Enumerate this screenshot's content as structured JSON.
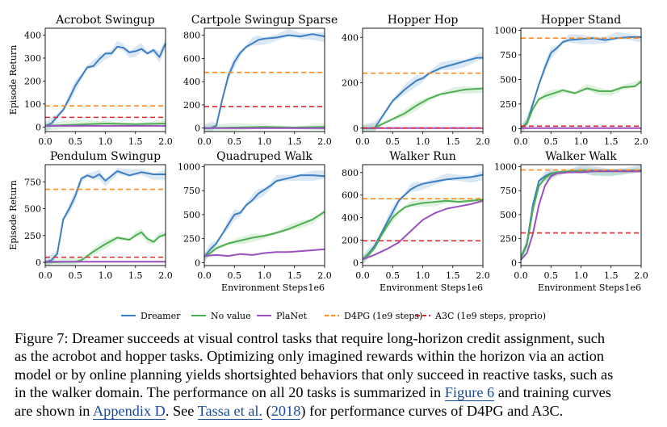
{
  "chart_data": [
    {
      "type": "line",
      "title": "Acrobot Swingup",
      "ylabel": "Episode Return",
      "xlabel": "",
      "xlim": [
        0,
        2
      ],
      "ylim": [
        -20,
        430
      ],
      "xticks": [
        "0.0",
        "0.5",
        "1.0",
        "1.5",
        "2.0"
      ],
      "yticks": [
        0,
        100,
        200,
        300,
        400
      ],
      "series": [
        {
          "name": "Dreamer",
          "x": [
            0,
            0.1,
            0.2,
            0.3,
            0.4,
            0.5,
            0.6,
            0.7,
            0.8,
            0.9,
            1.0,
            1.1,
            1.2,
            1.3,
            1.4,
            1.5,
            1.6,
            1.7,
            1.8,
            1.9,
            2.0
          ],
          "y": [
            5,
            15,
            45,
            75,
            125,
            180,
            220,
            260,
            265,
            295,
            320,
            320,
            350,
            345,
            325,
            330,
            340,
            320,
            335,
            305,
            365
          ]
        },
        {
          "name": "No value",
          "x": [
            0,
            0.5,
            1.0,
            1.5,
            2.0
          ],
          "y": [
            5,
            10,
            15,
            12,
            15
          ]
        },
        {
          "name": "PlaNet",
          "x": [
            0,
            0.5,
            1.0,
            1.5,
            2.0
          ],
          "y": [
            5,
            5,
            5,
            5,
            5
          ]
        },
        {
          "name": "D4PG (1e9 steps)",
          "value": 92
        },
        {
          "name": "A3C (1e9 steps, proprio)",
          "value": 42
        }
      ]
    },
    {
      "type": "line",
      "title": "Cartpole Swingup Sparse",
      "ylabel": "",
      "xlabel": "",
      "xlim": [
        0,
        2
      ],
      "ylim": [
        -30,
        860
      ],
      "xticks": [
        "0.0",
        "0.5",
        "1.0",
        "1.5",
        "2.0"
      ],
      "yticks": [
        0,
        200,
        400,
        600,
        800
      ],
      "series": [
        {
          "name": "Dreamer",
          "x": [
            0,
            0.1,
            0.2,
            0.3,
            0.4,
            0.5,
            0.6,
            0.7,
            0.8,
            0.9,
            1.0,
            1.2,
            1.4,
            1.6,
            1.8,
            2.0
          ],
          "y": [
            0,
            0,
            20,
            250,
            450,
            570,
            650,
            700,
            730,
            760,
            770,
            780,
            800,
            790,
            810,
            790
          ]
        },
        {
          "name": "No value",
          "x": [
            0,
            0.5,
            1.0,
            1.5,
            2.0
          ],
          "y": [
            0,
            5,
            10,
            5,
            10
          ]
        },
        {
          "name": "PlaNet",
          "x": [
            0,
            0.5,
            1.0,
            1.5,
            2.0
          ],
          "y": [
            0,
            0,
            0,
            0,
            0
          ]
        },
        {
          "name": "D4PG (1e9 steps)",
          "value": 480
        },
        {
          "name": "A3C (1e9 steps, proprio)",
          "value": 185
        }
      ]
    },
    {
      "type": "line",
      "title": "Hopper Hop",
      "ylabel": "",
      "xlabel": "",
      "xlim": [
        0,
        2
      ],
      "ylim": [
        -15,
        440
      ],
      "xticks": [
        "0.0",
        "0.5",
        "1.0",
        "1.5",
        "2.0"
      ],
      "yticks": [
        0,
        200,
        400
      ],
      "series": [
        {
          "name": "Dreamer",
          "x": [
            0,
            0.2,
            0.3,
            0.5,
            0.7,
            0.9,
            1.0,
            1.1,
            1.3,
            1.5,
            1.7,
            1.9,
            2.0
          ],
          "y": [
            0,
            0,
            40,
            120,
            170,
            210,
            220,
            240,
            265,
            280,
            295,
            310,
            310
          ]
        },
        {
          "name": "No value",
          "x": [
            0,
            0.2,
            0.3,
            0.5,
            0.7,
            0.9,
            1.1,
            1.3,
            1.5,
            1.7,
            2.0
          ],
          "y": [
            0,
            0,
            15,
            40,
            65,
            100,
            130,
            150,
            160,
            170,
            175
          ]
        },
        {
          "name": "PlaNet",
          "x": [
            0,
            0.5,
            1.0,
            1.5,
            2.0
          ],
          "y": [
            0,
            0,
            0,
            0,
            0
          ]
        },
        {
          "name": "D4PG (1e9 steps)",
          "value": 242
        },
        {
          "name": "A3C (1e9 steps, proprio)",
          "value": 1
        }
      ]
    },
    {
      "type": "line",
      "title": "Hopper Stand",
      "ylabel": "",
      "xlabel": "",
      "xlim": [
        0,
        2
      ],
      "ylim": [
        -30,
        1020
      ],
      "xticks": [
        "0.0",
        "0.5",
        "1.0",
        "1.5",
        "2.0"
      ],
      "yticks": [
        0,
        250,
        500,
        750,
        1000
      ],
      "series": [
        {
          "name": "Dreamer",
          "x": [
            0,
            0.1,
            0.2,
            0.3,
            0.4,
            0.5,
            0.6,
            0.7,
            0.8,
            1.0,
            1.2,
            1.4,
            1.6,
            1.8,
            2.0
          ],
          "y": [
            0,
            60,
            250,
            450,
            620,
            770,
            820,
            880,
            900,
            910,
            920,
            900,
            920,
            930,
            930
          ]
        },
        {
          "name": "No value",
          "x": [
            0,
            0.1,
            0.2,
            0.3,
            0.4,
            0.5,
            0.7,
            0.9,
            1.1,
            1.3,
            1.5,
            1.7,
            1.9,
            2.0
          ],
          "y": [
            0,
            50,
            200,
            300,
            330,
            350,
            390,
            360,
            410,
            380,
            380,
            420,
            430,
            480
          ]
        },
        {
          "name": "PlaNet",
          "x": [
            0,
            0.5,
            1.0,
            1.5,
            2.0
          ],
          "y": [
            5,
            5,
            5,
            5,
            5
          ]
        },
        {
          "name": "D4PG (1e9 steps)",
          "value": 920
        },
        {
          "name": "A3C (1e9 steps, proprio)",
          "value": 25
        }
      ]
    },
    {
      "type": "line",
      "title": "Pendulum Swingup",
      "ylabel": "Episode Return",
      "xlabel": "",
      "xlim": [
        0,
        2
      ],
      "ylim": [
        -30,
        910
      ],
      "xticks": [
        "0.0",
        "0.5",
        "1.0",
        "1.5",
        "2.0"
      ],
      "yticks": [
        0,
        250,
        500,
        750
      ],
      "series": [
        {
          "name": "Dreamer",
          "x": [
            0,
            0.1,
            0.2,
            0.3,
            0.4,
            0.5,
            0.6,
            0.7,
            0.8,
            0.9,
            1.0,
            1.2,
            1.4,
            1.6,
            1.8,
            2.0
          ],
          "y": [
            0,
            20,
            80,
            400,
            500,
            620,
            780,
            810,
            790,
            820,
            760,
            850,
            810,
            840,
            820,
            820
          ]
        },
        {
          "name": "No value",
          "x": [
            0,
            0.5,
            0.6,
            0.7,
            0.8,
            1.0,
            1.2,
            1.4,
            1.5,
            1.6,
            1.7,
            1.8,
            1.9,
            2.0
          ],
          "y": [
            0,
            5,
            20,
            60,
            100,
            170,
            230,
            210,
            250,
            280,
            220,
            190,
            240,
            260
          ]
        },
        {
          "name": "PlaNet",
          "x": [
            0,
            0.5,
            1.0,
            1.5,
            2.0
          ],
          "y": [
            5,
            5,
            5,
            5,
            5
          ]
        },
        {
          "name": "D4PG (1e9 steps)",
          "value": 680
        },
        {
          "name": "A3C (1e9 steps, proprio)",
          "value": 48
        }
      ]
    },
    {
      "type": "line",
      "title": "Quadruped Walk",
      "ylabel": "",
      "xlabel": "Environment Steps",
      "x_multiplier": "1e6",
      "xlim": [
        0,
        2
      ],
      "ylim": [
        -30,
        1020
      ],
      "xticks": [
        "0.0",
        "0.5",
        "1.0",
        "1.5",
        "2.0"
      ],
      "yticks": [
        0,
        250,
        500,
        750,
        1000
      ],
      "series": [
        {
          "name": "Dreamer",
          "x": [
            0,
            0.1,
            0.2,
            0.3,
            0.4,
            0.5,
            0.6,
            0.7,
            0.8,
            0.9,
            1.0,
            1.1,
            1.2,
            1.4,
            1.6,
            1.8,
            2.0
          ],
          "y": [
            60,
            140,
            200,
            300,
            400,
            500,
            520,
            600,
            650,
            720,
            760,
            800,
            850,
            880,
            910,
            910,
            900
          ]
        },
        {
          "name": "No value",
          "x": [
            0,
            0.1,
            0.2,
            0.4,
            0.6,
            0.8,
            1.0,
            1.2,
            1.4,
            1.6,
            1.8,
            2.0
          ],
          "y": [
            60,
            100,
            150,
            200,
            230,
            260,
            280,
            310,
            350,
            400,
            450,
            530
          ]
        },
        {
          "name": "PlaNet",
          "x": [
            0,
            0.2,
            0.4,
            0.6,
            0.8,
            1.0,
            1.2,
            1.4,
            1.6,
            1.8,
            2.0
          ],
          "y": [
            70,
            80,
            70,
            90,
            80,
            100,
            110,
            110,
            120,
            130,
            140
          ]
        }
      ]
    },
    {
      "type": "line",
      "title": "Walker Run",
      "ylabel": "",
      "xlabel": "Environment Steps",
      "x_multiplier": "1e6",
      "xlim": [
        0,
        2
      ],
      "ylim": [
        -25,
        870
      ],
      "xticks": [
        "0.0",
        "0.5",
        "1.0",
        "1.5",
        "2.0"
      ],
      "yticks": [
        0,
        200,
        400,
        600,
        800
      ],
      "series": [
        {
          "name": "Dreamer",
          "x": [
            0,
            0.1,
            0.2,
            0.3,
            0.4,
            0.5,
            0.6,
            0.7,
            0.8,
            0.9,
            1.0,
            1.2,
            1.4,
            1.6,
            1.8,
            2.0
          ],
          "y": [
            30,
            80,
            150,
            250,
            350,
            450,
            550,
            600,
            650,
            680,
            700,
            720,
            740,
            750,
            760,
            780
          ]
        },
        {
          "name": "No value",
          "x": [
            0,
            0.1,
            0.2,
            0.3,
            0.4,
            0.5,
            0.6,
            0.7,
            0.8,
            1.0,
            1.2,
            1.4,
            1.6,
            1.8,
            2.0
          ],
          "y": [
            30,
            70,
            130,
            230,
            320,
            400,
            450,
            490,
            510,
            530,
            540,
            550,
            540,
            550,
            560
          ]
        },
        {
          "name": "PlaNet",
          "x": [
            0,
            0.2,
            0.4,
            0.6,
            0.8,
            1.0,
            1.2,
            1.4,
            1.6,
            1.8,
            2.0
          ],
          "y": [
            30,
            70,
            120,
            180,
            280,
            380,
            440,
            480,
            500,
            520,
            550
          ]
        },
        {
          "name": "D4PG (1e9 steps)",
          "value": 568
        },
        {
          "name": "A3C (1e9 steps, proprio)",
          "value": 195
        }
      ]
    },
    {
      "type": "line",
      "title": "Walker Walk",
      "ylabel": "",
      "xlabel": "Environment Steps",
      "x_multiplier": "1e6",
      "xlim": [
        0,
        2
      ],
      "ylim": [
        -30,
        1020
      ],
      "xticks": [
        "0.0",
        "0.5",
        "1.0",
        "1.5",
        "2.0"
      ],
      "yticks": [
        0,
        250,
        500,
        750,
        1000
      ],
      "series": [
        {
          "name": "Dreamer",
          "x": [
            0,
            0.1,
            0.2,
            0.3,
            0.4,
            0.5,
            0.6,
            0.8,
            1.0,
            1.2,
            1.5,
            1.8,
            2.0
          ],
          "y": [
            50,
            200,
            600,
            850,
            900,
            930,
            940,
            950,
            960,
            960,
            960,
            960,
            960
          ]
        },
        {
          "name": "No value",
          "x": [
            0,
            0.1,
            0.2,
            0.3,
            0.4,
            0.5,
            0.6,
            0.8,
            1.0,
            1.2,
            1.5,
            1.8,
            2.0
          ],
          "y": [
            50,
            180,
            550,
            800,
            880,
            920,
            940,
            950,
            950,
            950,
            950,
            950,
            950
          ]
        },
        {
          "name": "PlaNet",
          "x": [
            0,
            0.1,
            0.2,
            0.3,
            0.4,
            0.5,
            0.6,
            0.8,
            1.0,
            1.2,
            1.5,
            1.8,
            2.0
          ],
          "y": [
            30,
            100,
            300,
            600,
            800,
            900,
            930,
            940,
            940,
            950,
            950,
            950,
            950
          ]
        },
        {
          "name": "D4PG (1e9 steps)",
          "value": 965
        },
        {
          "name": "A3C (1e9 steps, proprio)",
          "value": 310
        }
      ]
    }
  ],
  "legend": {
    "placement": "bottom",
    "items": [
      {
        "name": "Dreamer",
        "color": "#3a7ec4",
        "style": "solid"
      },
      {
        "name": "No value",
        "color": "#4caf50",
        "style": "solid"
      },
      {
        "name": "PlaNet",
        "color": "#9b4fc0",
        "style": "solid"
      },
      {
        "name": "D4PG (1e9 steps)",
        "color": "#ff8c1a",
        "style": "dashed"
      },
      {
        "name": "A3C (1e9 steps, proprio)",
        "color": "#e0282e",
        "style": "dashed"
      }
    ]
  },
  "colors": {
    "Dreamer": "#3a7ec4",
    "No value": "#4caf50",
    "PlaNet": "#9b4fc0",
    "D4PG (1e9 steps)": "#ff8c1a",
    "A3C (1e9 steps, proprio)": "#e0282e"
  },
  "caption": {
    "line1": "Figure 7: Dreamer succeeds at visual control tasks that require long-horizon credit assignment, such",
    "line2": "as the acrobot and hopper tasks. Optimizing only imagined rewards within the horizon via an action",
    "line3": "model or by online planning yields shortsighted behaviors that only succeed in reactive tasks, such as",
    "line4": "in the walker domain. The performance on all 20 tasks is summarized in ",
    "line4_link": "Figure 6",
    "line4_end": " and training curves",
    "line5_start": "are shown in ",
    "line5_link1": "Appendix D",
    "line5_mid": ". See ",
    "line5_link2": "Tassa et al.",
    "line5_paren_open": " (",
    "line5_link3": "2018",
    "line5_end": ") for performance curves of D4PG and A3C."
  }
}
